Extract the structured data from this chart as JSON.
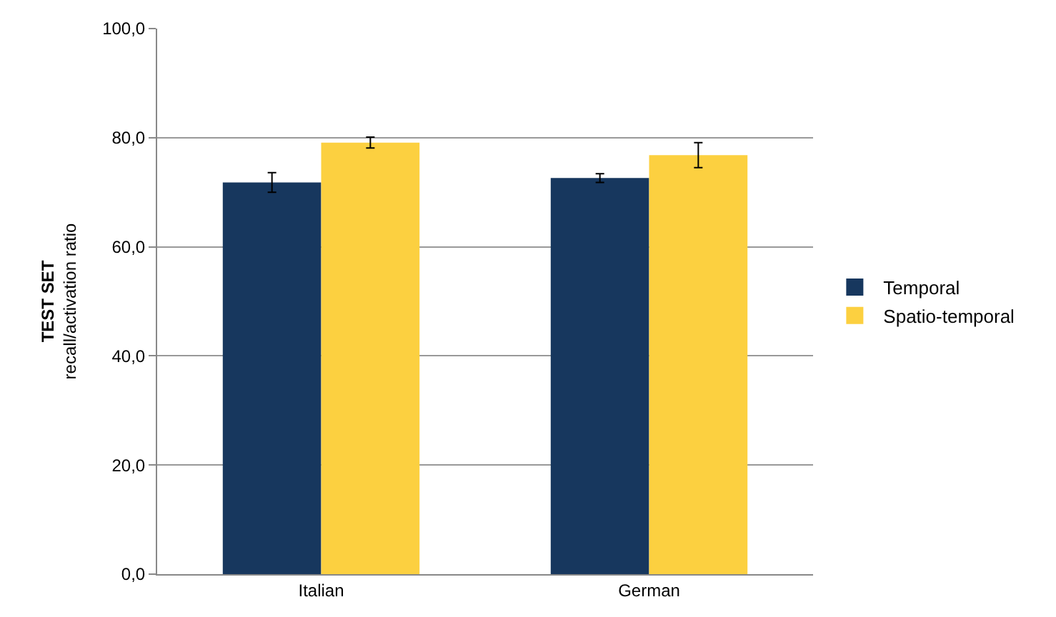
{
  "chart_data": {
    "type": "bar",
    "ylabel": "TEST SET\nrecall/activation ratio",
    "categories": [
      "Italian",
      "German"
    ],
    "series": [
      {
        "name": "Temporal",
        "color": "#17375e",
        "values": [
          71.8,
          72.6
        ],
        "errors": [
          1.8,
          0.8
        ]
      },
      {
        "name": "Spatio-temporal",
        "color": "#fcd040",
        "values": [
          79.1,
          76.8
        ],
        "errors": [
          1.0,
          2.3
        ]
      }
    ],
    "ylim": [
      0,
      100
    ],
    "yticks": [
      {
        "value": 0,
        "label": "0,0"
      },
      {
        "value": 20,
        "label": "20,0"
      },
      {
        "value": 40,
        "label": "40,0"
      },
      {
        "value": 60,
        "label": "60,0"
      },
      {
        "value": 80,
        "label": "80,0"
      },
      {
        "value": 100,
        "label": "100,0"
      }
    ],
    "grid": "y",
    "legend": "right"
  }
}
